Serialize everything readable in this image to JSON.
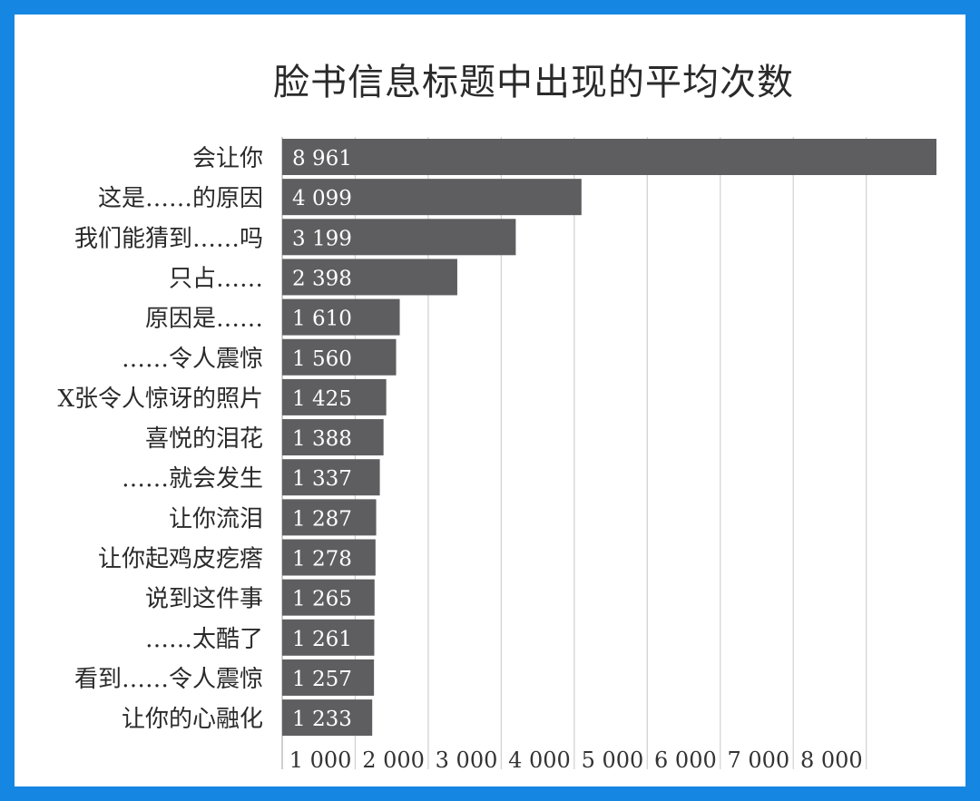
{
  "chart_data": {
    "type": "bar",
    "orientation": "horizontal",
    "title": "脸书信息标题中出现的平均次数",
    "categories": [
      "会让你",
      "这是……的原因",
      "我们能猜到……吗",
      "只占……",
      "原因是……",
      "……令人震惊",
      "X张令人惊讶的照片",
      "喜悦的泪花",
      "……就会发生",
      "让你流泪",
      "让你起鸡皮疙瘩",
      "说到这件事",
      "……太酷了",
      "看到……令人震惊",
      "让你的心融化"
    ],
    "values": [
      8961,
      4099,
      3199,
      2398,
      1610,
      1560,
      1425,
      1388,
      1337,
      1287,
      1278,
      1265,
      1261,
      1257,
      1233
    ],
    "value_labels": [
      "8 961",
      "4 099",
      "3 199",
      "2 398",
      "1 610",
      "1 560",
      "1 425",
      "1 388",
      "1 337",
      "1 287",
      "1 278",
      "1 265",
      "1 261",
      "1 257",
      "1 233"
    ],
    "xticks": [
      1000,
      2000,
      3000,
      4000,
      5000,
      6000,
      7000,
      8000
    ],
    "xtick_labels": [
      "1 000",
      "2 000",
      "3 000",
      "4 000",
      "5 000",
      "6 000",
      "7 000",
      "8 000"
    ],
    "xlim": [
      0,
      8961
    ],
    "grid": true,
    "bar_color": "#5e5e60",
    "xlabel": "",
    "ylabel": ""
  }
}
